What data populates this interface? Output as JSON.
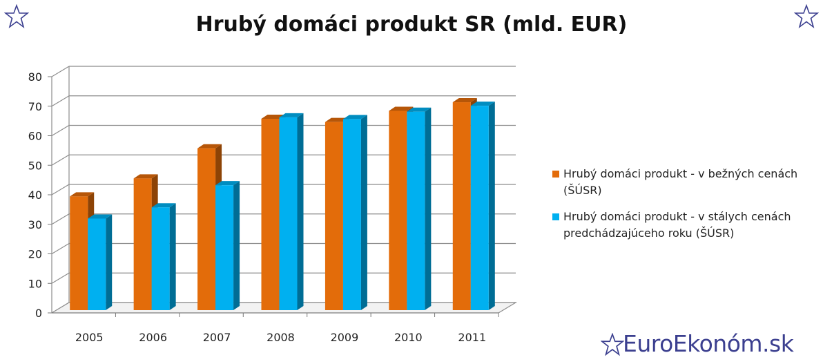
{
  "title": "Hrubý domáci produkt SR (mld. EUR)",
  "brand": "EuroEkonóm.sk",
  "icons": [
    "star-icon"
  ],
  "colors": {
    "series1": "#E36C0A",
    "series2": "#00B0F0",
    "brand": "#3B3F8F"
  },
  "chart_data": {
    "type": "bar",
    "categories": [
      "2005",
      "2006",
      "2007",
      "2008",
      "2009",
      "2010",
      "2011"
    ],
    "series": [
      {
        "name": "Hrubý domáci produkt - v bežných cenách (ŠÚSR)",
        "values": [
          38.5,
          44.6,
          54.8,
          64.8,
          63.7,
          67.5,
          70.4
        ],
        "color": "#E36C0A"
      },
      {
        "name": "Hrubý domáci produkt - v stálych cenách predchádzajúceho roku (ŠÚSR)",
        "values": [
          31.0,
          34.8,
          42.3,
          65.3,
          64.7,
          67.2,
          69.2
        ],
        "color": "#00B0F0"
      }
    ],
    "yticks": [
      "0",
      "10",
      "20",
      "30",
      "40",
      "50",
      "60",
      "70",
      "80"
    ],
    "ylim": [
      0,
      80
    ],
    "grid": true,
    "legend": "right"
  }
}
